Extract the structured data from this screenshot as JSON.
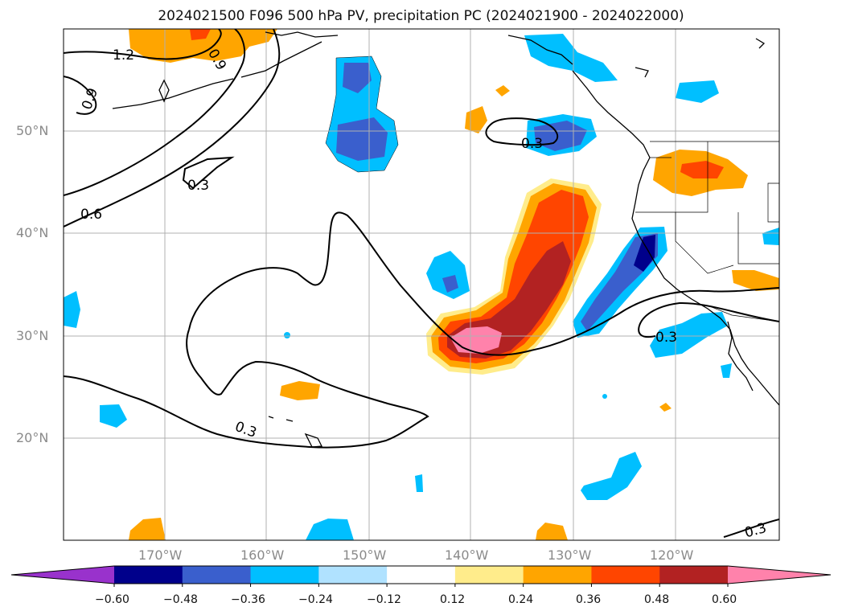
{
  "title": "2024021500 F096 500 hPa PV, precipitation PC (2024021900 - 2024022000)",
  "latitude_labels": [
    "50°N",
    "40°N",
    "30°N",
    "20°N"
  ],
  "longitude_labels": [
    "170°W",
    "160°W",
    "150°W",
    "140°W",
    "130°W",
    "120°W"
  ],
  "contour_labels": [
    "1.2",
    "0.9",
    "0.9",
    "0.6",
    "0.3",
    "0.3",
    "0.3",
    "0.3",
    "0.3"
  ],
  "colorbar": {
    "ticks": [
      "−0.60",
      "−0.48",
      "−0.36",
      "−0.24",
      "−0.12",
      "0.12",
      "0.24",
      "0.36",
      "0.48",
      "0.60"
    ],
    "colors": [
      "#9932cc",
      "#00008b",
      "#3a5fcd",
      "#00bfff",
      "#b0e2ff",
      "#ffffff",
      "#ffec8b",
      "#ffa500",
      "#ff4500",
      "#b22222",
      "#ff82ab"
    ]
  },
  "colors": {
    "land_border": "#000000",
    "grid": "#b0b0b0",
    "contour": "#000000"
  }
}
